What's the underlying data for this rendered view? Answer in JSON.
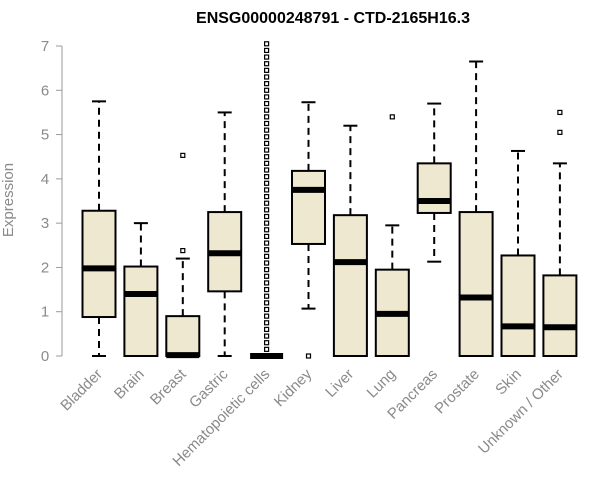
{
  "chart_data": {
    "type": "boxplot",
    "title": "ENSG00000248791 - CTD-2165H16.3",
    "xlabel": "",
    "ylabel": "Expression",
    "ylim": [
      0,
      7
    ],
    "yticks": [
      0,
      1,
      2,
      3,
      4,
      5,
      6,
      7
    ],
    "grid": false,
    "legend": "none",
    "colors": {
      "box_fill": "#efe8d0",
      "stroke": "#000000",
      "axis_text": "#8a8a8a"
    },
    "categories": [
      "Bladder",
      "Brain",
      "Breast",
      "Gastric",
      "Hematopoietic cells",
      "Kidney",
      "Liver",
      "Lung",
      "Pancreas",
      "Prostate",
      "Skin",
      "Unknown / Other"
    ],
    "boxes": [
      {
        "min": 0,
        "q1": 0.88,
        "median": 1.98,
        "q3": 3.28,
        "max": 5.75,
        "outliers": []
      },
      {
        "min": 0,
        "q1": 0,
        "median": 1.4,
        "q3": 2.02,
        "max": 3.0,
        "outliers": []
      },
      {
        "min": 0,
        "q1": 0,
        "median": 0.02,
        "q3": 0.9,
        "max": 2.2,
        "outliers": [
          2.38,
          4.53
        ]
      },
      {
        "min": 0,
        "q1": 1.46,
        "median": 2.32,
        "q3": 3.25,
        "max": 5.5,
        "outliers": []
      },
      {
        "min": 0,
        "q1": 0,
        "median": 0,
        "q3": 0,
        "max": 0,
        "outliers": [
          0.15,
          0.3,
          0.45,
          0.6,
          0.75,
          0.9,
          1.05,
          1.2,
          1.35,
          1.5,
          1.65,
          1.8,
          1.95,
          2.1,
          2.25,
          2.4,
          2.55,
          2.7,
          2.85,
          3.0,
          3.15,
          3.3,
          3.45,
          3.6,
          3.75,
          3.9,
          4.05,
          4.2,
          4.35,
          4.5,
          4.65,
          4.8,
          4.95,
          5.1,
          5.25,
          5.4,
          5.55,
          5.7,
          5.85,
          6.0,
          6.15,
          6.3,
          6.45,
          6.6,
          6.75,
          6.9,
          7.05
        ]
      },
      {
        "min": 1.07,
        "q1": 2.53,
        "median": 3.75,
        "q3": 4.18,
        "max": 5.73,
        "outliers": [
          0.0
        ]
      },
      {
        "min": 0,
        "q1": 0,
        "median": 2.12,
        "q3": 3.18,
        "max": 5.2,
        "outliers": []
      },
      {
        "min": 0,
        "q1": 0,
        "median": 0.95,
        "q3": 1.95,
        "max": 2.95,
        "outliers": [
          5.4
        ]
      },
      {
        "min": 2.13,
        "q1": 3.23,
        "median": 3.5,
        "q3": 4.35,
        "max": 5.7,
        "outliers": []
      },
      {
        "min": 0,
        "q1": 0,
        "median": 1.32,
        "q3": 3.25,
        "max": 6.65,
        "outliers": []
      },
      {
        "min": 0,
        "q1": 0,
        "median": 0.67,
        "q3": 2.27,
        "max": 4.63,
        "outliers": []
      },
      {
        "min": 0,
        "q1": 0,
        "median": 0.65,
        "q3": 1.82,
        "max": 4.35,
        "outliers": [
          5.05,
          5.5
        ]
      }
    ]
  }
}
